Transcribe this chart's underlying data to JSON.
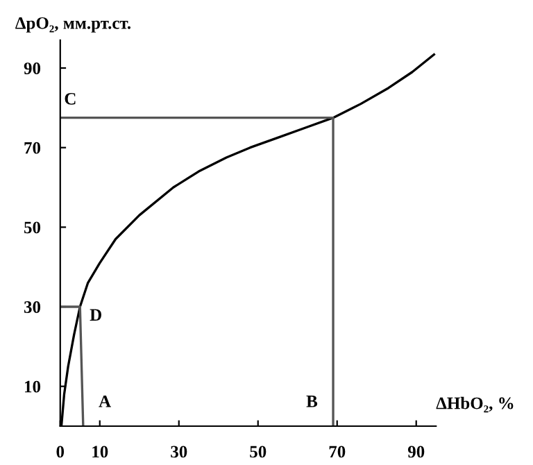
{
  "chart_data": {
    "type": "line",
    "xlabel": "ΔHbO₂, %",
    "ylabel": "ΔpO₂, мм.рт.ст.",
    "series": [
      {
        "color": "#000000",
        "x": [
          0.3,
          1,
          2,
          3.5,
          5,
          7,
          10,
          14,
          20,
          28.6,
          35,
          42,
          48,
          55,
          62,
          69,
          76,
          83,
          89,
          94.5
        ],
        "values": [
          0,
          8,
          15,
          23,
          30,
          36,
          41,
          47,
          53,
          60,
          64,
          67.5,
          70,
          72.5,
          75,
          77.5,
          81,
          85,
          89,
          93.4
        ]
      },
      {
        "color": "#555555",
        "x": [
          0,
          69,
          69
        ],
        "values": [
          77.5,
          77.5,
          0
        ]
      },
      {
        "color": "#555555",
        "x": [
          0,
          5,
          5.8
        ],
        "values": [
          30,
          30,
          0
        ]
      }
    ],
    "annotations": [
      {
        "text": "C",
        "x": 0,
        "y": 77.5
      },
      {
        "text": "D",
        "x": 5,
        "y": 30
      },
      {
        "text": "A",
        "x": 5.8,
        "y": 0
      },
      {
        "text": "B",
        "x": 69,
        "y": 0
      }
    ],
    "xlim": [
      0,
      95
    ],
    "ylim": [
      0,
      97
    ],
    "xticks": [
      0,
      10,
      30,
      50,
      70,
      90
    ],
    "yticks": [
      10,
      30,
      50,
      70,
      90
    ],
    "grid": false,
    "legend": false,
    "marker": "none",
    "line_style": "solid"
  }
}
